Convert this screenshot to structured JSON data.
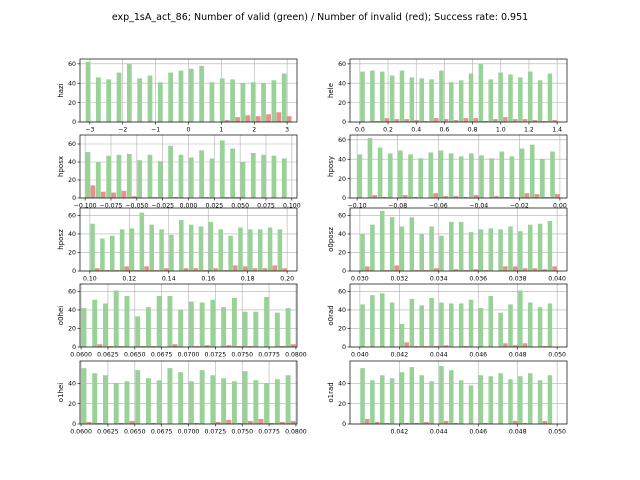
{
  "figure_title": "exp_1sA_act_86; Number of valid (green) / Number of invalid (red); Success rate: 0.951",
  "colors": {
    "valid": "#99d199",
    "invalid": "#e8908a"
  },
  "chart_data": [
    {
      "type": "bar",
      "ylabel": "hazi",
      "xlim": [
        -3.3,
        3.3
      ],
      "ylim": [
        0,
        65
      ],
      "grid": true,
      "xticks": [
        -3,
        -2,
        -1,
        0,
        1,
        2,
        3
      ],
      "xtick_labels": [
        "−3",
        "−2",
        "−1",
        "0",
        "1",
        "2",
        "3"
      ],
      "yticks": [
        0,
        20,
        40,
        60
      ],
      "ytick_labels": [
        "0",
        "20",
        "40",
        "60"
      ],
      "x_min": -3.14,
      "x_max": 3.14,
      "valid": [
        62,
        46,
        44,
        51,
        60,
        45,
        48,
        41,
        51,
        53,
        55,
        58,
        41,
        45,
        44,
        40,
        41,
        40,
        43,
        50
      ],
      "invalid": [
        0,
        0,
        0,
        0,
        0,
        0,
        0,
        0,
        0,
        0,
        0,
        0,
        0,
        2,
        5,
        7,
        6,
        8,
        10,
        6
      ]
    },
    {
      "type": "bar",
      "ylabel": "hele",
      "xlim": [
        -0.07,
        1.47
      ],
      "ylim": [
        0,
        65
      ],
      "grid": true,
      "xticks": [
        0.0,
        0.2,
        0.4,
        0.6,
        0.8,
        1.0,
        1.2,
        1.4
      ],
      "xtick_labels": [
        "0.0",
        "0.2",
        "0.4",
        "0.6",
        "0.8",
        "1.0",
        "1.2",
        "1.4"
      ],
      "yticks": [
        0,
        20,
        40,
        60
      ],
      "ytick_labels": [
        "0",
        "20",
        "40",
        "60"
      ],
      "x_min": 0.0,
      "x_max": 1.4,
      "valid": [
        52,
        53,
        52,
        48,
        53,
        46,
        45,
        44,
        53,
        41,
        43,
        50,
        60,
        44,
        51,
        49,
        46,
        52,
        43,
        50
      ],
      "invalid": [
        0,
        1,
        4,
        3,
        3,
        2,
        1,
        4,
        3,
        2,
        4,
        4,
        1,
        3,
        5,
        3,
        3,
        2,
        1,
        2
      ]
    },
    {
      "type": "bar",
      "ylabel": "hposx",
      "xlim": [
        -0.105,
        0.105
      ],
      "ylim": [
        0,
        70
      ],
      "grid": true,
      "xticks": [
        -0.1,
        -0.075,
        -0.05,
        -0.025,
        0.0,
        0.025,
        0.05,
        0.075,
        0.1
      ],
      "xtick_labels": [
        "−0.100",
        "−0.075",
        "−0.050",
        "−0.025",
        "0.000",
        "0.025",
        "0.050",
        "0.075",
        "0.100"
      ],
      "yticks": [
        0,
        20,
        40,
        60
      ],
      "ytick_labels": [
        "0",
        "20",
        "40",
        "60"
      ],
      "x_min": -0.1,
      "x_max": 0.1,
      "valid": [
        51,
        40,
        47,
        48,
        49,
        42,
        48,
        41,
        58,
        48,
        45,
        53,
        44,
        64,
        55,
        40,
        50,
        48,
        47,
        44
      ],
      "invalid": [
        14,
        7,
        6,
        8,
        2,
        0,
        1,
        0,
        1,
        0,
        0,
        1,
        0,
        1,
        1,
        0,
        0,
        0,
        0,
        0
      ]
    },
    {
      "type": "bar",
      "ylabel": "hposy",
      "xlim": [
        -0.1035,
        0.0035
      ],
      "ylim": [
        0,
        65
      ],
      "grid": true,
      "xticks": [
        -0.1,
        -0.08,
        -0.06,
        -0.04,
        -0.02,
        0.0
      ],
      "xtick_labels": [
        "−0.10",
        "−0.08",
        "−0.06",
        "−0.04",
        "−0.02",
        "0.00"
      ],
      "yticks": [
        0,
        20,
        40,
        60
      ],
      "ytick_labels": [
        "0",
        "20",
        "40",
        "60"
      ],
      "x_min": -0.1,
      "x_max": 0.0,
      "valid": [
        45,
        62,
        52,
        46,
        49,
        45,
        41,
        47,
        49,
        46,
        43,
        46,
        44,
        41,
        48,
        43,
        51,
        55,
        40,
        48
      ],
      "invalid": [
        0,
        3,
        1,
        0,
        3,
        1,
        0,
        5,
        2,
        2,
        1,
        3,
        0,
        2,
        1,
        0,
        5,
        4,
        1,
        4
      ]
    },
    {
      "type": "bar",
      "ylabel": "hposz",
      "xlim": [
        0.095,
        0.205
      ],
      "ylim": [
        0,
        68
      ],
      "grid": true,
      "xticks": [
        0.1,
        0.12,
        0.14,
        0.16,
        0.18,
        0.2
      ],
      "xtick_labels": [
        "0.10",
        "0.12",
        "0.14",
        "0.16",
        "0.18",
        "0.20"
      ],
      "yticks": [
        0,
        20,
        40,
        60
      ],
      "ytick_labels": [
        "0",
        "20",
        "40",
        "60"
      ],
      "x_min": 0.1,
      "x_max": 0.2,
      "valid": [
        51,
        35,
        38,
        45,
        46,
        63,
        50,
        45,
        39,
        55,
        50,
        48,
        53,
        45,
        38,
        47,
        45,
        45,
        47,
        45
      ],
      "invalid": [
        3,
        1,
        1,
        5,
        1,
        5,
        1,
        3,
        0,
        3,
        3,
        1,
        3,
        1,
        6,
        5,
        3,
        3,
        6,
        3
      ]
    },
    {
      "type": "bar",
      "ylabel": "o0posz",
      "xlim": [
        0.0295,
        0.0405
      ],
      "ylim": [
        0,
        68
      ],
      "grid": true,
      "xticks": [
        0.03,
        0.032,
        0.034,
        0.036,
        0.038,
        0.04
      ],
      "xtick_labels": [
        "0.030",
        "0.032",
        "0.034",
        "0.036",
        "0.038",
        "0.040"
      ],
      "yticks": [
        0,
        20,
        40,
        60
      ],
      "ytick_labels": [
        "0",
        "20",
        "40",
        "60"
      ],
      "x_min": 0.03,
      "x_max": 0.04,
      "valid": [
        40,
        50,
        65,
        58,
        48,
        58,
        40,
        48,
        38,
        53,
        53,
        42,
        45,
        46,
        45,
        48,
        43,
        50,
        51,
        54
      ],
      "invalid": [
        5,
        0,
        1,
        6,
        0,
        1,
        1,
        3,
        0,
        2,
        1,
        2,
        1,
        0,
        5,
        5,
        3,
        3,
        2,
        5
      ]
    },
    {
      "type": "bar",
      "ylabel": "o0hei",
      "xlim": [
        0.0599,
        0.0801
      ],
      "ylim": [
        0,
        68
      ],
      "grid": true,
      "xticks": [
        0.06,
        0.0625,
        0.065,
        0.0675,
        0.07,
        0.0725,
        0.075,
        0.0775,
        0.08
      ],
      "xtick_labels": [
        "0.0600",
        "0.0625",
        "0.0650",
        "0.0675",
        "0.0700",
        "0.0725",
        "0.0750",
        "0.0775",
        "0.0800"
      ],
      "yticks": [
        0,
        20,
        40,
        60
      ],
      "ytick_labels": [
        "0",
        "20",
        "40",
        "60"
      ],
      "x_min": 0.06,
      "x_max": 0.08,
      "valid": [
        42,
        51,
        47,
        61,
        55,
        33,
        43,
        55,
        55,
        40,
        49,
        48,
        51,
        43,
        53,
        38,
        38,
        54,
        37,
        42
      ],
      "invalid": [
        0,
        3,
        1,
        1,
        0,
        1,
        1,
        0,
        3,
        0,
        1,
        2,
        0,
        2,
        1,
        1,
        0,
        0,
        1,
        3
      ]
    },
    {
      "type": "bar",
      "ylabel": "o0rad",
      "xlim": [
        0.0395,
        0.0505
      ],
      "ylim": [
        0,
        68
      ],
      "grid": true,
      "xticks": [
        0.04,
        0.042,
        0.044,
        0.046,
        0.048,
        0.05
      ],
      "xtick_labels": [
        "0.040",
        "0.042",
        "0.044",
        "0.046",
        "0.048",
        "0.050"
      ],
      "yticks": [
        0,
        20,
        40,
        60
      ],
      "ytick_labels": [
        "0",
        "20",
        "40",
        "60"
      ],
      "x_min": 0.04,
      "x_max": 0.05,
      "valid": [
        46,
        56,
        58,
        48,
        25,
        52,
        45,
        53,
        48,
        47,
        47,
        51,
        42,
        55,
        37,
        46,
        61,
        48,
        43,
        47
      ],
      "invalid": [
        0,
        0,
        0,
        0,
        5,
        1,
        1,
        1,
        2,
        0,
        1,
        0,
        0,
        0,
        4,
        2,
        4,
        0,
        1,
        0
      ]
    },
    {
      "type": "bar",
      "ylabel": "o1hei",
      "xlim": [
        0.0599,
        0.0801
      ],
      "ylim": [
        0,
        62
      ],
      "grid": true,
      "xticks": [
        0.06,
        0.0625,
        0.065,
        0.0675,
        0.07,
        0.0725,
        0.075,
        0.0775,
        0.08
      ],
      "xtick_labels": [
        "0.0600",
        "0.0625",
        "0.0650",
        "0.0675",
        "0.0700",
        "0.0725",
        "0.0750",
        "0.0775",
        "0.0800"
      ],
      "yticks": [
        0,
        20,
        40
      ],
      "ytick_labels": [
        "0",
        "20",
        "40"
      ],
      "x_min": 0.06,
      "x_max": 0.08,
      "valid": [
        55,
        50,
        48,
        40,
        42,
        53,
        45,
        43,
        55,
        51,
        42,
        53,
        48,
        45,
        42,
        52,
        43,
        40,
        44,
        48
      ],
      "invalid": [
        2,
        1,
        0,
        1,
        3,
        0,
        1,
        0,
        0,
        1,
        1,
        0,
        2,
        4,
        1,
        3,
        5,
        1,
        2,
        3
      ]
    },
    {
      "type": "bar",
      "ylabel": "o1rad",
      "xlim": [
        0.0395,
        0.0505
      ],
      "ylim": [
        0,
        62
      ],
      "grid": true,
      "xticks": [
        0.042,
        0.044,
        0.046,
        0.048,
        0.05
      ],
      "xtick_labels": [
        "0.042",
        "0.044",
        "0.046",
        "0.048",
        "0.050"
      ],
      "yticks": [
        0,
        20,
        40
      ],
      "ytick_labels": [
        "0",
        "20",
        "40"
      ],
      "x_min": 0.04,
      "x_max": 0.05,
      "valid": [
        55,
        43,
        48,
        45,
        51,
        56,
        48,
        42,
        57,
        53,
        43,
        38,
        48,
        47,
        50,
        44,
        47,
        50,
        43,
        48
      ],
      "invalid": [
        5,
        2,
        1,
        0,
        1,
        1,
        2,
        0,
        3,
        1,
        0,
        0,
        1,
        0,
        0,
        3,
        1,
        0,
        3,
        0
      ]
    }
  ]
}
